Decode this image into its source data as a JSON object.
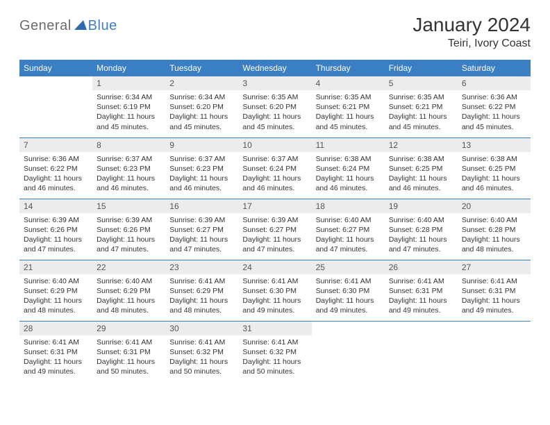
{
  "logo": {
    "part1": "General",
    "part2": "Blue"
  },
  "title": "January 2024",
  "location": "Teiri, Ivory Coast",
  "colors": {
    "header_blue": "#3a7fc4",
    "daynum_bg": "#ececec",
    "text": "#333333",
    "logo_gray": "#6b6b6b"
  },
  "day_headers": [
    "Sunday",
    "Monday",
    "Tuesday",
    "Wednesday",
    "Thursday",
    "Friday",
    "Saturday"
  ],
  "weeks": [
    [
      null,
      {
        "n": "1",
        "sunrise": "Sunrise: 6:34 AM",
        "sunset": "Sunset: 6:19 PM",
        "day1": "Daylight: 11 hours",
        "day2": "and 45 minutes."
      },
      {
        "n": "2",
        "sunrise": "Sunrise: 6:34 AM",
        "sunset": "Sunset: 6:20 PM",
        "day1": "Daylight: 11 hours",
        "day2": "and 45 minutes."
      },
      {
        "n": "3",
        "sunrise": "Sunrise: 6:35 AM",
        "sunset": "Sunset: 6:20 PM",
        "day1": "Daylight: 11 hours",
        "day2": "and 45 minutes."
      },
      {
        "n": "4",
        "sunrise": "Sunrise: 6:35 AM",
        "sunset": "Sunset: 6:21 PM",
        "day1": "Daylight: 11 hours",
        "day2": "and 45 minutes."
      },
      {
        "n": "5",
        "sunrise": "Sunrise: 6:35 AM",
        "sunset": "Sunset: 6:21 PM",
        "day1": "Daylight: 11 hours",
        "day2": "and 45 minutes."
      },
      {
        "n": "6",
        "sunrise": "Sunrise: 6:36 AM",
        "sunset": "Sunset: 6:22 PM",
        "day1": "Daylight: 11 hours",
        "day2": "and 45 minutes."
      }
    ],
    [
      {
        "n": "7",
        "sunrise": "Sunrise: 6:36 AM",
        "sunset": "Sunset: 6:22 PM",
        "day1": "Daylight: 11 hours",
        "day2": "and 46 minutes."
      },
      {
        "n": "8",
        "sunrise": "Sunrise: 6:37 AM",
        "sunset": "Sunset: 6:23 PM",
        "day1": "Daylight: 11 hours",
        "day2": "and 46 minutes."
      },
      {
        "n": "9",
        "sunrise": "Sunrise: 6:37 AM",
        "sunset": "Sunset: 6:23 PM",
        "day1": "Daylight: 11 hours",
        "day2": "and 46 minutes."
      },
      {
        "n": "10",
        "sunrise": "Sunrise: 6:37 AM",
        "sunset": "Sunset: 6:24 PM",
        "day1": "Daylight: 11 hours",
        "day2": "and 46 minutes."
      },
      {
        "n": "11",
        "sunrise": "Sunrise: 6:38 AM",
        "sunset": "Sunset: 6:24 PM",
        "day1": "Daylight: 11 hours",
        "day2": "and 46 minutes."
      },
      {
        "n": "12",
        "sunrise": "Sunrise: 6:38 AM",
        "sunset": "Sunset: 6:25 PM",
        "day1": "Daylight: 11 hours",
        "day2": "and 46 minutes."
      },
      {
        "n": "13",
        "sunrise": "Sunrise: 6:38 AM",
        "sunset": "Sunset: 6:25 PM",
        "day1": "Daylight: 11 hours",
        "day2": "and 46 minutes."
      }
    ],
    [
      {
        "n": "14",
        "sunrise": "Sunrise: 6:39 AM",
        "sunset": "Sunset: 6:26 PM",
        "day1": "Daylight: 11 hours",
        "day2": "and 47 minutes."
      },
      {
        "n": "15",
        "sunrise": "Sunrise: 6:39 AM",
        "sunset": "Sunset: 6:26 PM",
        "day1": "Daylight: 11 hours",
        "day2": "and 47 minutes."
      },
      {
        "n": "16",
        "sunrise": "Sunrise: 6:39 AM",
        "sunset": "Sunset: 6:27 PM",
        "day1": "Daylight: 11 hours",
        "day2": "and 47 minutes."
      },
      {
        "n": "17",
        "sunrise": "Sunrise: 6:39 AM",
        "sunset": "Sunset: 6:27 PM",
        "day1": "Daylight: 11 hours",
        "day2": "and 47 minutes."
      },
      {
        "n": "18",
        "sunrise": "Sunrise: 6:40 AM",
        "sunset": "Sunset: 6:27 PM",
        "day1": "Daylight: 11 hours",
        "day2": "and 47 minutes."
      },
      {
        "n": "19",
        "sunrise": "Sunrise: 6:40 AM",
        "sunset": "Sunset: 6:28 PM",
        "day1": "Daylight: 11 hours",
        "day2": "and 47 minutes."
      },
      {
        "n": "20",
        "sunrise": "Sunrise: 6:40 AM",
        "sunset": "Sunset: 6:28 PM",
        "day1": "Daylight: 11 hours",
        "day2": "and 48 minutes."
      }
    ],
    [
      {
        "n": "21",
        "sunrise": "Sunrise: 6:40 AM",
        "sunset": "Sunset: 6:29 PM",
        "day1": "Daylight: 11 hours",
        "day2": "and 48 minutes."
      },
      {
        "n": "22",
        "sunrise": "Sunrise: 6:40 AM",
        "sunset": "Sunset: 6:29 PM",
        "day1": "Daylight: 11 hours",
        "day2": "and 48 minutes."
      },
      {
        "n": "23",
        "sunrise": "Sunrise: 6:41 AM",
        "sunset": "Sunset: 6:29 PM",
        "day1": "Daylight: 11 hours",
        "day2": "and 48 minutes."
      },
      {
        "n": "24",
        "sunrise": "Sunrise: 6:41 AM",
        "sunset": "Sunset: 6:30 PM",
        "day1": "Daylight: 11 hours",
        "day2": "and 49 minutes."
      },
      {
        "n": "25",
        "sunrise": "Sunrise: 6:41 AM",
        "sunset": "Sunset: 6:30 PM",
        "day1": "Daylight: 11 hours",
        "day2": "and 49 minutes."
      },
      {
        "n": "26",
        "sunrise": "Sunrise: 6:41 AM",
        "sunset": "Sunset: 6:31 PM",
        "day1": "Daylight: 11 hours",
        "day2": "and 49 minutes."
      },
      {
        "n": "27",
        "sunrise": "Sunrise: 6:41 AM",
        "sunset": "Sunset: 6:31 PM",
        "day1": "Daylight: 11 hours",
        "day2": "and 49 minutes."
      }
    ],
    [
      {
        "n": "28",
        "sunrise": "Sunrise: 6:41 AM",
        "sunset": "Sunset: 6:31 PM",
        "day1": "Daylight: 11 hours",
        "day2": "and 49 minutes."
      },
      {
        "n": "29",
        "sunrise": "Sunrise: 6:41 AM",
        "sunset": "Sunset: 6:31 PM",
        "day1": "Daylight: 11 hours",
        "day2": "and 50 minutes."
      },
      {
        "n": "30",
        "sunrise": "Sunrise: 6:41 AM",
        "sunset": "Sunset: 6:32 PM",
        "day1": "Daylight: 11 hours",
        "day2": "and 50 minutes."
      },
      {
        "n": "31",
        "sunrise": "Sunrise: 6:41 AM",
        "sunset": "Sunset: 6:32 PM",
        "day1": "Daylight: 11 hours",
        "day2": "and 50 minutes."
      },
      null,
      null,
      null
    ]
  ]
}
